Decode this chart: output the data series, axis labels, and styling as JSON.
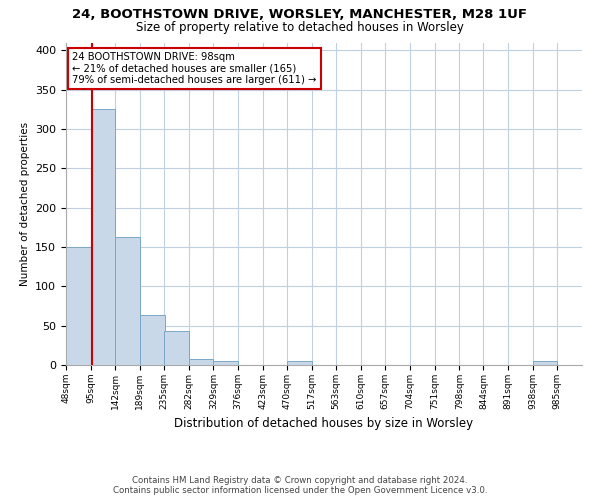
{
  "title_line1": "24, BOOTHSTOWN DRIVE, WORSLEY, MANCHESTER, M28 1UF",
  "title_line2": "Size of property relative to detached houses in Worsley",
  "xlabel": "Distribution of detached houses by size in Worsley",
  "ylabel": "Number of detached properties",
  "bin_labels": [
    "48sqm",
    "95sqm",
    "142sqm",
    "189sqm",
    "235sqm",
    "282sqm",
    "329sqm",
    "376sqm",
    "423sqm",
    "470sqm",
    "517sqm",
    "563sqm",
    "610sqm",
    "657sqm",
    "704sqm",
    "751sqm",
    "798sqm",
    "844sqm",
    "891sqm",
    "938sqm",
    "985sqm"
  ],
  "bin_edges": [
    48,
    95,
    142,
    189,
    235,
    282,
    329,
    376,
    423,
    470,
    517,
    563,
    610,
    657,
    704,
    751,
    798,
    844,
    891,
    938,
    985
  ],
  "bar_heights": [
    150,
    325,
    163,
    63,
    43,
    8,
    5,
    0,
    0,
    5,
    0,
    0,
    0,
    0,
    0,
    0,
    0,
    0,
    0,
    5,
    0
  ],
  "subject_value": 98,
  "subject_line1": "24 BOOTHSTOWN DRIVE: 98sqm",
  "subject_line2": "← 21% of detached houses are smaller (165)",
  "subject_line3": "79% of semi-detached houses are larger (611) →",
  "bar_color": "#c8d8e8",
  "bar_edge_color": "#7aa8c8",
  "subject_line_color": "#cc0000",
  "annotation_box_edge_color": "#cc0000",
  "background_color": "#ffffff",
  "grid_color": "#c0d0e0",
  "ylim": [
    0,
    410
  ],
  "footer_line1": "Contains HM Land Registry data © Crown copyright and database right 2024.",
  "footer_line2": "Contains public sector information licensed under the Open Government Licence v3.0."
}
